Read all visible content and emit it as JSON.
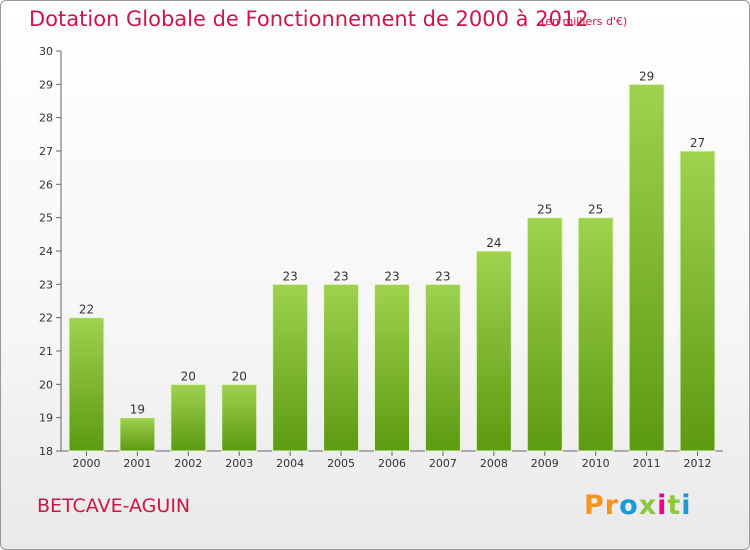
{
  "header": {
    "title": "Dotation Globale de Fonctionnement de 2000 à 2012",
    "units": "(en milliers d'€)"
  },
  "footer": {
    "commune": "BETCAVE-AGUIN",
    "logo_letters": [
      "P",
      "r",
      "o",
      "x",
      "i",
      "t",
      "i"
    ],
    "logo_colors": [
      "#f7941d",
      "#f7941d",
      "#1a9ad6",
      "#8dc63f",
      "#ec008c",
      "#8dc63f",
      "#1a9ad6"
    ]
  },
  "colors": {
    "bar_top": "#9fd24f",
    "bar_bottom": "#5c9a12",
    "title": "#c8184a"
  },
  "chart_data": {
    "type": "bar",
    "title": "Dotation Globale de Fonctionnement de 2000 à 2012",
    "subtitle": "(en milliers d'€)",
    "categories": [
      "2000",
      "2001",
      "2002",
      "2003",
      "2004",
      "2005",
      "2006",
      "2007",
      "2008",
      "2009",
      "2010",
      "2011",
      "2012"
    ],
    "values": [
      22,
      19,
      20,
      20,
      23,
      23,
      23,
      23,
      24,
      25,
      25,
      29,
      27
    ],
    "ylim": [
      18,
      30
    ],
    "yticks": [
      18,
      19,
      20,
      21,
      22,
      23,
      24,
      25,
      26,
      27,
      28,
      29,
      30
    ],
    "grid": false,
    "xlabel": "",
    "ylabel": ""
  }
}
